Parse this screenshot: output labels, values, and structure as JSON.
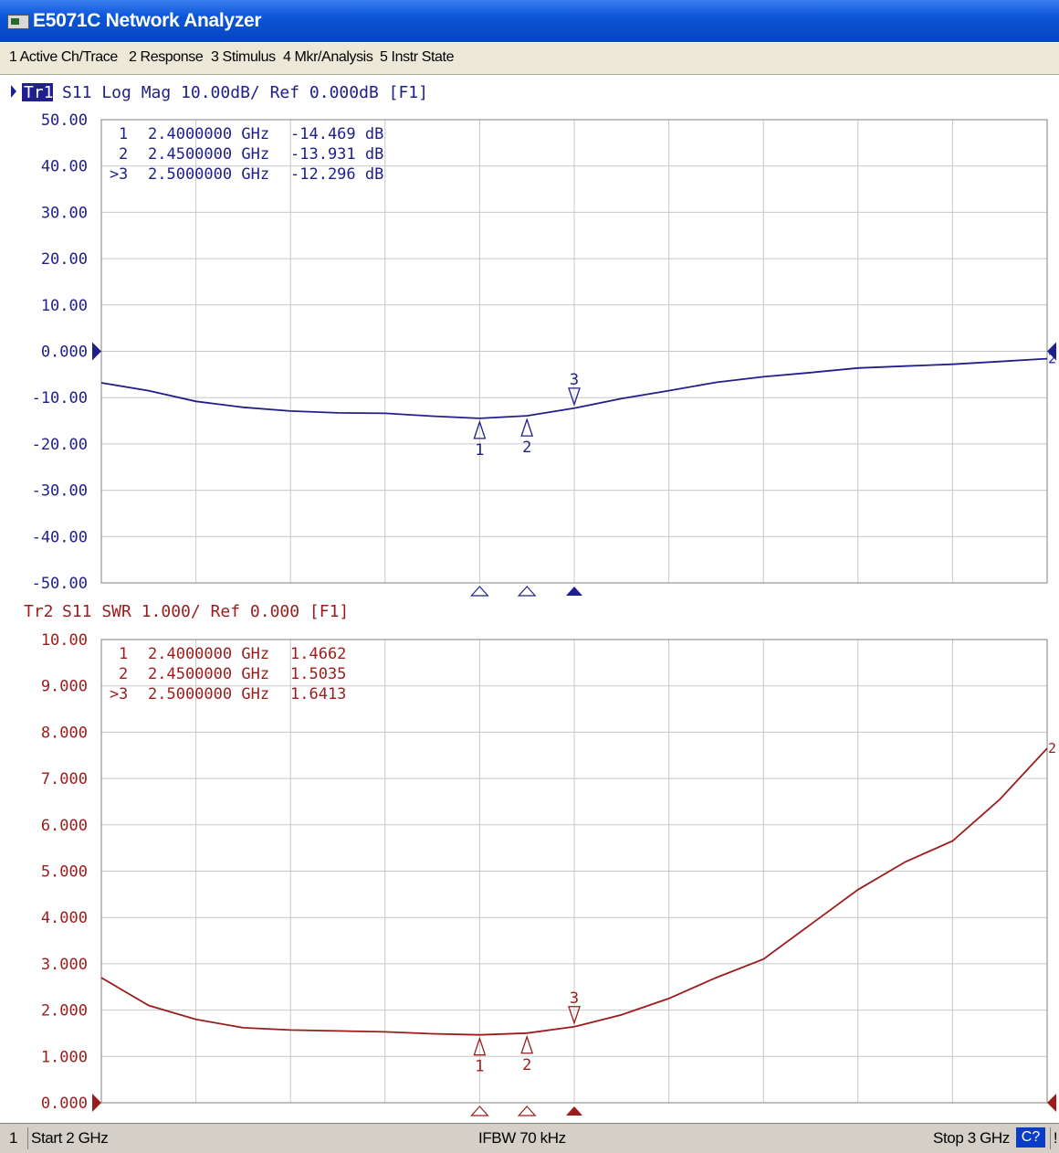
{
  "window": {
    "title": "E5071C Network Analyzer",
    "icon": "analyzer-app-icon"
  },
  "menu": [
    "1 Active Ch/Trace",
    "2 Response",
    "3 Stimulus",
    "4 Mkr/Analysis",
    "5 Instr State"
  ],
  "traces": [
    {
      "id": "tr1",
      "label_prefix": "Tr1",
      "header": "S11 Log Mag 10.00dB/ Ref 0.000dB [F1]",
      "active": true,
      "color": "#20208c",
      "y_ticks": [
        "50.00",
        "40.00",
        "30.00",
        "20.00",
        "10.00",
        "0.000",
        "-10.00",
        "-20.00",
        "-30.00",
        "-40.00",
        "-50.00"
      ],
      "ylim": [
        -50,
        50
      ],
      "ref_value": 0,
      "markers": [
        {
          "num": "1",
          "freq": "2.4000000 GHz",
          "value": "-14.469 dB",
          "active": false
        },
        {
          "num": "2",
          "freq": "2.4500000 GHz",
          "value": "-13.931 dB",
          "active": false
        },
        {
          "num": "3",
          "freq": "2.5000000 GHz",
          "value": "-12.296 dB",
          "active": true
        }
      ]
    },
    {
      "id": "tr2",
      "label_prefix": "Tr2",
      "header": "S11 SWR 1.000/ Ref 0.000 [F1]",
      "active": false,
      "color": "#9c1c1c",
      "y_ticks": [
        "10.00",
        "9.000",
        "8.000",
        "7.000",
        "6.000",
        "5.000",
        "4.000",
        "3.000",
        "2.000",
        "1.000",
        "0.000"
      ],
      "ylim": [
        0,
        10
      ],
      "ref_value": 0,
      "markers": [
        {
          "num": "1",
          "freq": "2.4000000 GHz",
          "value": "1.4662",
          "active": false
        },
        {
          "num": "2",
          "freq": "2.4500000 GHz",
          "value": "1.5035",
          "active": false
        },
        {
          "num": "3",
          "freq": "2.5000000 GHz",
          "value": "1.6413",
          "active": true
        }
      ]
    }
  ],
  "chart_data": [
    {
      "type": "line",
      "title": "Tr1 S11 Log Mag 10.00dB/ Ref 0.000dB [F1]",
      "xlim": [
        2.0,
        3.0
      ],
      "ylim": [
        -50,
        50
      ],
      "grid": true,
      "series": [
        {
          "name": "S11",
          "x": [
            2.0,
            2.05,
            2.1,
            2.15,
            2.2,
            2.25,
            2.3,
            2.35,
            2.4,
            2.45,
            2.5,
            2.55,
            2.6,
            2.65,
            2.7,
            2.75,
            2.8,
            2.85,
            2.9,
            2.95,
            3.0
          ],
          "y": [
            -6.8,
            -8.5,
            -10.8,
            -12.1,
            -12.9,
            -13.3,
            -13.4,
            -14.0,
            -14.469,
            -13.931,
            -12.296,
            -10.2,
            -8.5,
            -6.7,
            -5.5,
            -4.6,
            -3.6,
            -3.2,
            -2.8,
            -2.2,
            -1.6
          ]
        }
      ],
      "markers": [
        {
          "label": "1",
          "x": 2.4,
          "y": -14.469
        },
        {
          "label": "2",
          "x": 2.45,
          "y": -13.931
        },
        {
          "label": "3",
          "x": 2.5,
          "y": -12.296
        }
      ]
    },
    {
      "type": "line",
      "title": "Tr2 S11 SWR 1.000/ Ref 0.000 [F1]",
      "xlim": [
        2.0,
        3.0
      ],
      "ylim": [
        0,
        10
      ],
      "grid": true,
      "series": [
        {
          "name": "S11",
          "x": [
            2.0,
            2.05,
            2.1,
            2.15,
            2.2,
            2.25,
            2.3,
            2.35,
            2.4,
            2.45,
            2.5,
            2.55,
            2.6,
            2.65,
            2.7,
            2.75,
            2.8,
            2.85,
            2.9,
            2.95,
            3.0
          ],
          "y": [
            2.7,
            2.1,
            1.8,
            1.62,
            1.57,
            1.55,
            1.53,
            1.49,
            1.4662,
            1.5035,
            1.6413,
            1.9,
            2.25,
            2.7,
            3.1,
            3.85,
            4.6,
            5.2,
            5.65,
            6.55,
            7.65
          ]
        }
      ],
      "markers": [
        {
          "label": "1",
          "x": 2.4,
          "y": 1.4662
        },
        {
          "label": "2",
          "x": 2.45,
          "y": 1.5035
        },
        {
          "label": "3",
          "x": 2.5,
          "y": 1.6413
        }
      ]
    }
  ],
  "status": {
    "channel": "1",
    "start": "Start 2 GHz",
    "ifbw": "IFBW 70 kHz",
    "stop": "Stop 3 GHz",
    "cal_button": "C?",
    "alert": "!"
  }
}
